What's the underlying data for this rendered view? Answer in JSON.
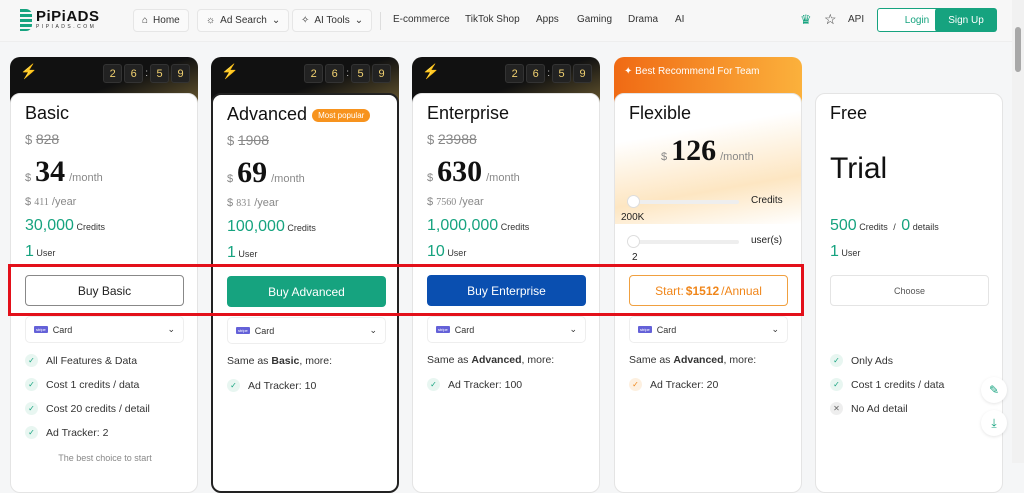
{
  "nav": {
    "logo": "PiPiADS",
    "logo_sub": "PIPIADS.COM",
    "home": "Home",
    "ad_search": "Ad Search",
    "ai_tools": "AI Tools",
    "links": [
      "E-commerce",
      "TikTok Shop",
      "Apps",
      "Gaming",
      "Drama",
      "AI"
    ],
    "api": "API",
    "login": "Login",
    "signup": "Sign Up"
  },
  "timer": [
    "2",
    "6",
    "5",
    "9"
  ],
  "plans": [
    {
      "name": "Basic",
      "currency": "$",
      "original": "828",
      "price": "34",
      "per": "/month",
      "year": "411",
      "per_year": "/year",
      "credits": "30,000",
      "credits_label": "Credits",
      "users": "1",
      "users_label": "User",
      "button": "Buy Basic",
      "payment": "Card",
      "features": [
        "All Features & Data",
        "Cost 1 credits / data",
        "Cost 20 credits / detail",
        "Ad Tracker: 2"
      ],
      "note": "The best choice to start"
    },
    {
      "name": "Advanced",
      "badge": "Most popular",
      "currency": "$",
      "original": "1908",
      "price": "69",
      "per": "/month",
      "year": "831",
      "per_year": "/year",
      "credits": "100,000",
      "credits_label": "Credits",
      "users": "1",
      "users_label": "User",
      "button": "Buy Advanced",
      "payment": "Card",
      "same_prefix": "Same as ",
      "same_bold": "Basic",
      "same_suffix": ", more:",
      "features": [
        "Ad Tracker: 10"
      ]
    },
    {
      "name": "Enterprise",
      "currency": "$",
      "original": "23988",
      "price": "630",
      "per": "/month",
      "year": "7560",
      "per_year": "/year",
      "credits": "1,000,000",
      "credits_label": "Credits",
      "users": "10",
      "users_label": "User",
      "button": "Buy Enterprise",
      "payment": "Card",
      "same_prefix": "Same as ",
      "same_bold": "Advanced",
      "same_suffix": ", more:",
      "features": [
        "Ad Tracker: 100"
      ]
    },
    {
      "name": "Flexible",
      "ribbon": "Best Recommend For Team",
      "currency": "$",
      "price": "126",
      "per": "/month",
      "credits_label": "Credits",
      "credits_value": "200K",
      "users_label": "user(s)",
      "users_value": "2",
      "button_prefix": "Start: ",
      "button_amount": "$1512",
      "button_suffix": " /Annual",
      "payment": "Card",
      "same_prefix": "Same as ",
      "same_bold": "Advanced",
      "same_suffix": ", more:",
      "features": [
        "Ad Tracker: 20"
      ]
    },
    {
      "name": "Free",
      "headline": "Trial",
      "credits": "500",
      "credits_label": "Credits",
      "sep": "/",
      "details": "0",
      "details_label": "details",
      "users": "1",
      "users_label": "User",
      "button": "Choose",
      "features": [
        "Only Ads",
        "Cost 1 credits / data",
        "No Ad detail"
      ]
    }
  ],
  "colors": {
    "brand": "#16a37f",
    "enterprise": "#0a4fb0",
    "accent": "#f0861a",
    "highlight": "#e3101a"
  }
}
